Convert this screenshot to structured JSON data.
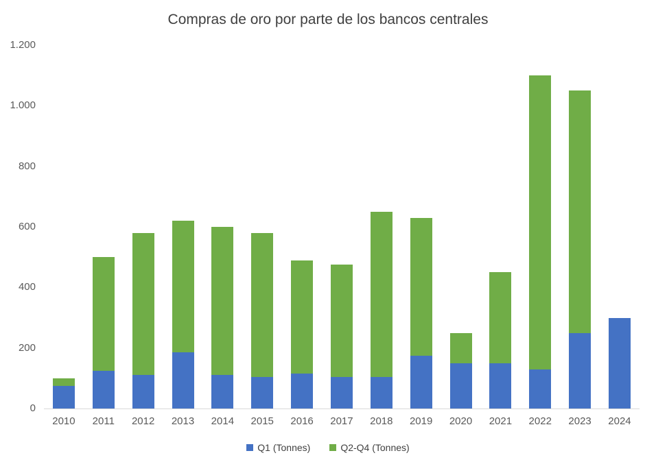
{
  "chart_data": {
    "type": "bar",
    "stacked": true,
    "title": "Compras de oro por parte de los bancos centrales",
    "categories": [
      "2010",
      "2011",
      "2012",
      "2013",
      "2014",
      "2015",
      "2016",
      "2017",
      "2018",
      "2019",
      "2020",
      "2021",
      "2022",
      "2023",
      "2024"
    ],
    "series": [
      {
        "name": "Q1 (Tonnes)",
        "color": "#4472C4",
        "values": [
          75,
          125,
          110,
          185,
          110,
          105,
          115,
          105,
          105,
          175,
          150,
          150,
          130,
          250,
          300
        ]
      },
      {
        "name": "Q2-Q4 (Tonnes)",
        "color": "#70AD47",
        "values": [
          25,
          375,
          470,
          435,
          490,
          475,
          375,
          370,
          545,
          455,
          100,
          300,
          970,
          800,
          0
        ]
      }
    ],
    "ylim": [
      0,
      1200
    ],
    "yticks": [
      {
        "value": 0,
        "label": "0"
      },
      {
        "value": 200,
        "label": "200"
      },
      {
        "value": 400,
        "label": "400"
      },
      {
        "value": 600,
        "label": "600"
      },
      {
        "value": 800,
        "label": "800"
      },
      {
        "value": 1000,
        "label": "1.000"
      },
      {
        "value": 1200,
        "label": "1.200"
      }
    ],
    "grid": false,
    "legend_position": "bottom"
  }
}
